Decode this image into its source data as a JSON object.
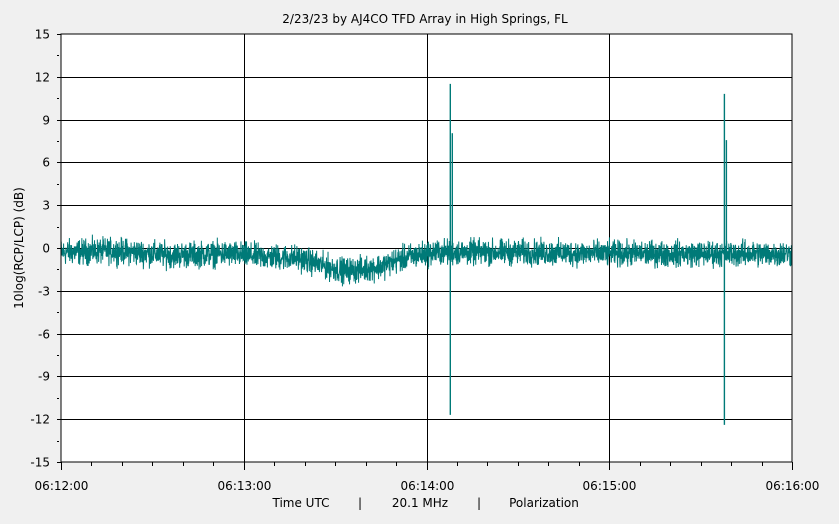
{
  "chart_data": {
    "type": "line",
    "title": "2/23/23  by  AJ4CO TFD Array  in  High Springs, FL",
    "ylabel": "10log(RCP/LCP)  (dB)",
    "footer": {
      "xlabel": "Time UTC",
      "separator": "|",
      "frequency": "20.1 MHz",
      "quantity": "Polarization"
    },
    "ylim": [
      -15,
      15
    ],
    "yticks": [
      "15",
      "12",
      "9",
      "6",
      "3",
      "0",
      "-3",
      "-6",
      "-9",
      "-12",
      "-15"
    ],
    "ytick_values": [
      15,
      12,
      9,
      6,
      3,
      0,
      -3,
      -6,
      -9,
      -12,
      -15
    ],
    "xlim_minutes": [
      0,
      4
    ],
    "xticks": [
      "06:12:00",
      "06:13:00",
      "06:14:00",
      "06:15:00",
      "06:16:00"
    ],
    "xtick_values": [
      0,
      1,
      2,
      3,
      4
    ],
    "grid": true,
    "series": [
      {
        "name": "Polarization",
        "color": "#007a78",
        "baseline": [
          [
            0,
            -0.3
          ],
          [
            0.3,
            -0.2
          ],
          [
            0.6,
            -0.5
          ],
          [
            0.9,
            -0.4
          ],
          [
            1.1,
            -0.6
          ],
          [
            1.3,
            -0.7
          ],
          [
            1.45,
            -1.3
          ],
          [
            1.55,
            -1.6
          ],
          [
            1.65,
            -1.5
          ],
          [
            1.75,
            -1.3
          ],
          [
            1.85,
            -0.8
          ],
          [
            1.95,
            -0.5
          ],
          [
            2.05,
            -0.3
          ],
          [
            2.5,
            -0.3
          ],
          [
            3.0,
            -0.4
          ],
          [
            3.5,
            -0.4
          ],
          [
            4.0,
            -0.4
          ]
        ],
        "noise_db": 0.55,
        "spikes": [
          {
            "t": 2.13,
            "min": -11.7,
            "max": 11.5
          },
          {
            "t": 3.63,
            "min": -12.4,
            "max": 10.8
          }
        ]
      }
    ]
  }
}
